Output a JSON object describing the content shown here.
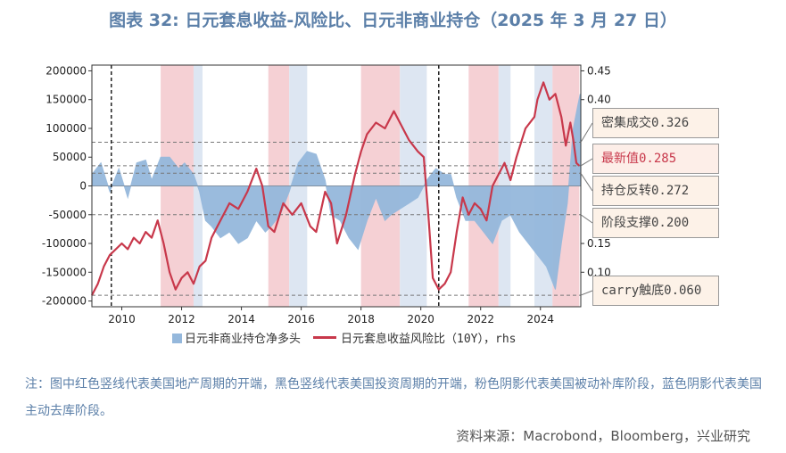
{
  "title": "图表 32: 日元套息收益-风险比、日元非商业持仓（2025 年 3 月 27 日）",
  "note": "注：图中红色竖线代表美国地产周期的开端，黑色竖线代表美国投资周期的开端，粉色阴影代表美国被动补库阶段，蓝色阴影代表美国主动去库阶段。",
  "source": "资料来源：Macrobond，Bloomberg，兴业研究",
  "legend": {
    "bar_label": "日元非商业持仓净多头",
    "line_label": "日元套息收益风险比（10Y），rhs"
  },
  "callouts": [
    {
      "label": "密集成交0.326"
    },
    {
      "label": "最新值0.285"
    },
    {
      "label": "持仓反转0.272"
    },
    {
      "label": "阶段支撑0.200"
    },
    {
      "label": "carry触底0.060"
    }
  ],
  "colors": {
    "bar": "#95b8dc",
    "line": "#c8384b",
    "pink_shade": "#f5d0d4",
    "blue_shade": "#dde6f2",
    "title": "#5b7fa8"
  },
  "chart_data": {
    "type": "bar+line",
    "x_range": [
      2009.0,
      2025.35
    ],
    "x_ticks": [
      "2010",
      "2012",
      "2014",
      "2016",
      "2018",
      "2020",
      "2022",
      "2024"
    ],
    "y_left": {
      "range": [
        -210000,
        210000
      ],
      "ticks": [
        "200000",
        "150000",
        "100000",
        "50000",
        "0",
        "-50000",
        "-100000",
        "-150000",
        "-200000"
      ]
    },
    "y_right": {
      "range": [
        0.04,
        0.46
      ],
      "ticks": [
        "0.45",
        "0.40",
        "0.15",
        "0.10"
      ]
    },
    "pink_periods": [
      [
        2011.3,
        2012.4
      ],
      [
        2014.9,
        2015.6
      ],
      [
        2018.0,
        2019.3
      ],
      [
        2021.6,
        2022.6
      ],
      [
        2024.4,
        2025.3
      ]
    ],
    "blue_periods": [
      [
        2012.4,
        2012.7
      ],
      [
        2015.6,
        2016.2
      ],
      [
        2019.3,
        2020.2
      ],
      [
        2022.6,
        2023.0
      ],
      [
        2023.8,
        2024.4
      ]
    ],
    "black_vlines": [
      2009.65,
      2020.6
    ],
    "ref_lines_rhs": [
      0.326,
      0.285,
      0.272,
      0.2,
      0.06
    ],
    "series": [
      {
        "name": "日元非商业持仓净多头",
        "axis": "left",
        "kind": "area",
        "points": [
          [
            2009.0,
            20000
          ],
          [
            2009.3,
            40000
          ],
          [
            2009.6,
            -10000
          ],
          [
            2009.9,
            30000
          ],
          [
            2010.2,
            -20000
          ],
          [
            2010.5,
            40000
          ],
          [
            2010.8,
            45000
          ],
          [
            2011.0,
            10000
          ],
          [
            2011.3,
            50000
          ],
          [
            2011.6,
            50000
          ],
          [
            2011.9,
            30000
          ],
          [
            2012.1,
            40000
          ],
          [
            2012.4,
            20000
          ],
          [
            2012.6,
            -10000
          ],
          [
            2012.8,
            -60000
          ],
          [
            2013.0,
            -70000
          ],
          [
            2013.3,
            -90000
          ],
          [
            2013.6,
            -80000
          ],
          [
            2013.9,
            -100000
          ],
          [
            2014.2,
            -90000
          ],
          [
            2014.5,
            -60000
          ],
          [
            2014.8,
            -80000
          ],
          [
            2015.0,
            -70000
          ],
          [
            2015.3,
            -50000
          ],
          [
            2015.6,
            -10000
          ],
          [
            2015.9,
            40000
          ],
          [
            2016.2,
            60000
          ],
          [
            2016.5,
            55000
          ],
          [
            2016.8,
            10000
          ],
          [
            2017.0,
            -50000
          ],
          [
            2017.3,
            -60000
          ],
          [
            2017.6,
            -90000
          ],
          [
            2017.9,
            -110000
          ],
          [
            2018.2,
            -60000
          ],
          [
            2018.5,
            -20000
          ],
          [
            2018.8,
            -60000
          ],
          [
            2019.0,
            -50000
          ],
          [
            2019.3,
            -40000
          ],
          [
            2019.6,
            -30000
          ],
          [
            2019.9,
            -20000
          ],
          [
            2020.2,
            10000
          ],
          [
            2020.5,
            30000
          ],
          [
            2020.8,
            20000
          ],
          [
            2021.0,
            20000
          ],
          [
            2021.2,
            -20000
          ],
          [
            2021.5,
            -60000
          ],
          [
            2021.8,
            -60000
          ],
          [
            2022.1,
            -80000
          ],
          [
            2022.4,
            -100000
          ],
          [
            2022.7,
            -60000
          ],
          [
            2023.0,
            -50000
          ],
          [
            2023.3,
            -80000
          ],
          [
            2023.6,
            -100000
          ],
          [
            2023.9,
            -120000
          ],
          [
            2024.2,
            -140000
          ],
          [
            2024.5,
            -180000
          ],
          [
            2024.7,
            -100000
          ],
          [
            2024.9,
            -30000
          ],
          [
            2025.1,
            100000
          ],
          [
            2025.25,
            140000
          ],
          [
            2025.33,
            160000
          ]
        ]
      },
      {
        "name": "日元套息收益风险比（10Y）",
        "axis": "right",
        "kind": "line",
        "points": [
          [
            2009.0,
            0.06
          ],
          [
            2009.2,
            0.08
          ],
          [
            2009.4,
            0.11
          ],
          [
            2009.6,
            0.13
          ],
          [
            2009.8,
            0.14
          ],
          [
            2010.0,
            0.15
          ],
          [
            2010.2,
            0.14
          ],
          [
            2010.4,
            0.16
          ],
          [
            2010.6,
            0.15
          ],
          [
            2010.8,
            0.17
          ],
          [
            2011.0,
            0.16
          ],
          [
            2011.2,
            0.19
          ],
          [
            2011.4,
            0.15
          ],
          [
            2011.6,
            0.1
          ],
          [
            2011.8,
            0.07
          ],
          [
            2012.0,
            0.09
          ],
          [
            2012.2,
            0.1
          ],
          [
            2012.4,
            0.08
          ],
          [
            2012.6,
            0.11
          ],
          [
            2012.8,
            0.12
          ],
          [
            2013.0,
            0.16
          ],
          [
            2013.3,
            0.19
          ],
          [
            2013.6,
            0.22
          ],
          [
            2013.9,
            0.21
          ],
          [
            2014.2,
            0.24
          ],
          [
            2014.5,
            0.28
          ],
          [
            2014.7,
            0.25
          ],
          [
            2014.9,
            0.18
          ],
          [
            2015.1,
            0.17
          ],
          [
            2015.4,
            0.22
          ],
          [
            2015.7,
            0.2
          ],
          [
            2016.0,
            0.22
          ],
          [
            2016.3,
            0.18
          ],
          [
            2016.5,
            0.17
          ],
          [
            2016.8,
            0.24
          ],
          [
            2017.0,
            0.22
          ],
          [
            2017.2,
            0.15
          ],
          [
            2017.5,
            0.2
          ],
          [
            2017.8,
            0.27
          ],
          [
            2018.0,
            0.31
          ],
          [
            2018.2,
            0.34
          ],
          [
            2018.5,
            0.36
          ],
          [
            2018.8,
            0.35
          ],
          [
            2019.1,
            0.38
          ],
          [
            2019.3,
            0.36
          ],
          [
            2019.6,
            0.33
          ],
          [
            2019.9,
            0.31
          ],
          [
            2020.1,
            0.3
          ],
          [
            2020.25,
            0.2
          ],
          [
            2020.4,
            0.09
          ],
          [
            2020.6,
            0.07
          ],
          [
            2020.8,
            0.08
          ],
          [
            2021.0,
            0.1
          ],
          [
            2021.2,
            0.17
          ],
          [
            2021.4,
            0.23
          ],
          [
            2021.6,
            0.2
          ],
          [
            2021.8,
            0.22
          ],
          [
            2022.0,
            0.21
          ],
          [
            2022.2,
            0.19
          ],
          [
            2022.4,
            0.25
          ],
          [
            2022.6,
            0.27
          ],
          [
            2022.8,
            0.29
          ],
          [
            2023.0,
            0.26
          ],
          [
            2023.2,
            0.3
          ],
          [
            2023.5,
            0.35
          ],
          [
            2023.8,
            0.37
          ],
          [
            2023.9,
            0.4
          ],
          [
            2024.1,
            0.43
          ],
          [
            2024.3,
            0.4
          ],
          [
            2024.5,
            0.41
          ],
          [
            2024.7,
            0.37
          ],
          [
            2024.85,
            0.32
          ],
          [
            2025.0,
            0.36
          ],
          [
            2025.1,
            0.33
          ],
          [
            2025.2,
            0.29
          ],
          [
            2025.3,
            0.285
          ]
        ]
      }
    ]
  }
}
